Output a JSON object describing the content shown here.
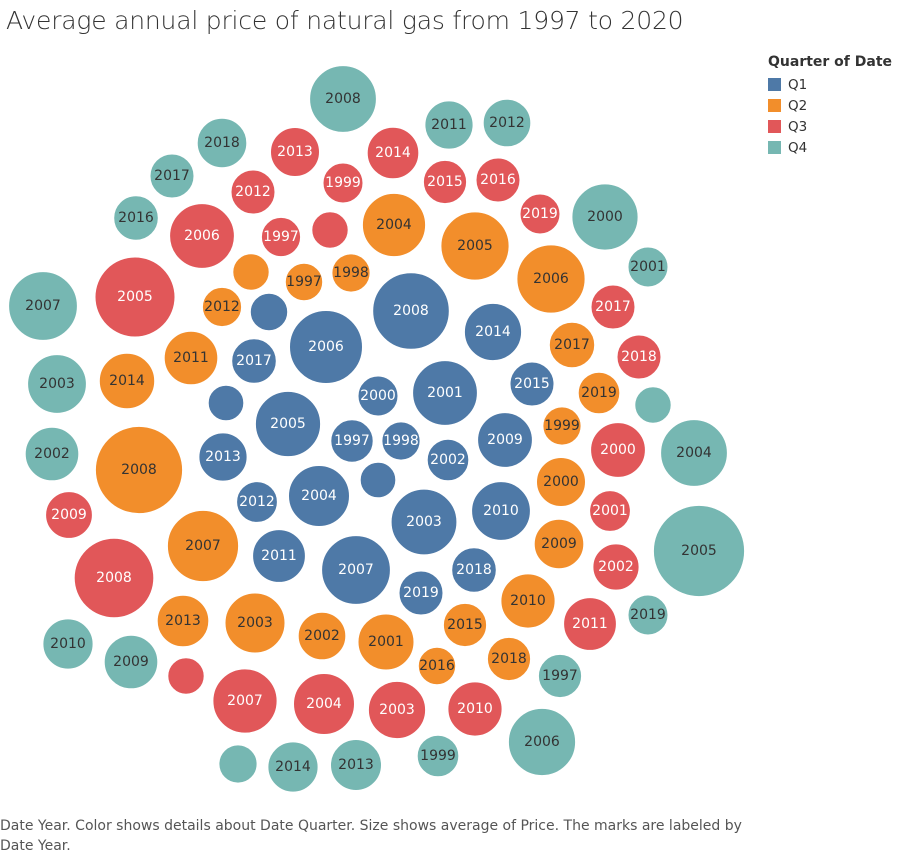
{
  "title": "Average annual price of natural gas from 1997 to 2020",
  "legend": {
    "title": "Quarter of Date",
    "items": [
      {
        "label": "Q1",
        "color": "#4e79a7"
      },
      {
        "label": "Q2",
        "color": "#f28e2b"
      },
      {
        "label": "Q3",
        "color": "#e15759"
      },
      {
        "label": "Q4",
        "color": "#76b7b2"
      }
    ]
  },
  "caption": "Date Year.  Color shows details about Date Quarter.  Size shows average of Price.  The marks are labeled by Date Year.",
  "chart_data": {
    "type": "bubble",
    "title": "Average annual price of natural gas from 1997 to 2020",
    "size_measure": "average of Price",
    "color_measure": "Date Quarter",
    "label_measure": "Date Year",
    "series": [
      {
        "name": "Q1",
        "color": "#4e79a7",
        "points": [
          {
            "year": "2008",
            "value": 8.8
          },
          {
            "year": "2006",
            "value": 8.0
          },
          {
            "year": "2014",
            "value": 4.9
          },
          {
            "year": "2017",
            "value": 3.0
          },
          {
            "year": "2015",
            "value": 2.9
          },
          {
            "year": "2000",
            "value": 2.4
          },
          {
            "year": "2001",
            "value": 6.3
          },
          {
            "year": "2005",
            "value": 6.4
          },
          {
            "year": "1997",
            "value": 2.7
          },
          {
            "year": "1998",
            "value": 2.2
          },
          {
            "year": "2002",
            "value": 2.6
          },
          {
            "year": "2009",
            "value": 4.5
          },
          {
            "year": "2013",
            "value": 3.5
          },
          {
            "year": "2004",
            "value": 5.6
          },
          {
            "year": "2003",
            "value": 6.5
          },
          {
            "year": "2010",
            "value": 5.2
          },
          {
            "year": "2012",
            "value": 2.5
          },
          {
            "year": "2011",
            "value": 4.2
          },
          {
            "year": "2007",
            "value": 7.1
          },
          {
            "year": "2018",
            "value": 3.0
          },
          {
            "year": "2019",
            "value": 2.9
          },
          {
            "year": "",
            "value": 2.1
          },
          {
            "year": "",
            "value": 1.9
          },
          {
            "year": "",
            "value": 1.9
          }
        ]
      },
      {
        "name": "Q2",
        "color": "#f28e2b",
        "points": [
          {
            "year": "2004",
            "value": 6.0
          },
          {
            "year": "2005",
            "value": 7.0
          },
          {
            "year": "2006",
            "value": 7.0
          },
          {
            "year": "1998",
            "value": 2.2
          },
          {
            "year": "1997",
            "value": 2.1
          },
          {
            "year": "2012",
            "value": 2.3
          },
          {
            "year": "2011",
            "value": 4.3
          },
          {
            "year": "2014",
            "value": 4.6
          },
          {
            "year": "2017",
            "value": 3.1
          },
          {
            "year": "2019",
            "value": 2.6
          },
          {
            "year": "1999",
            "value": 2.2
          },
          {
            "year": "2000",
            "value": 3.6
          },
          {
            "year": "2008",
            "value": 11.4
          },
          {
            "year": "2009",
            "value": 3.7
          },
          {
            "year": "2007",
            "value": 7.6
          },
          {
            "year": "2010",
            "value": 4.4
          },
          {
            "year": "2013",
            "value": 4.0
          },
          {
            "year": "2003",
            "value": 5.4
          },
          {
            "year": "2002",
            "value": 3.4
          },
          {
            "year": "2001",
            "value": 4.7
          },
          {
            "year": "2015",
            "value": 2.8
          },
          {
            "year": "2016",
            "value": 2.1
          },
          {
            "year": "2018",
            "value": 2.8
          },
          {
            "year": "",
            "value": 2.0
          }
        ]
      },
      {
        "name": "Q3",
        "color": "#e15759",
        "points": [
          {
            "year": "2013",
            "value": 3.6
          },
          {
            "year": "2014",
            "value": 4.0
          },
          {
            "year": "1999",
            "value": 2.4
          },
          {
            "year": "2015",
            "value": 2.8
          },
          {
            "year": "2016",
            "value": 2.9
          },
          {
            "year": "2012",
            "value": 2.9
          },
          {
            "year": "1997",
            "value": 2.3
          },
          {
            "year": "2019",
            "value": 2.4
          },
          {
            "year": "2006",
            "value": 6.3
          },
          {
            "year": "2005",
            "value": 9.6
          },
          {
            "year": "2017",
            "value": 2.9
          },
          {
            "year": "2018",
            "value": 2.9
          },
          {
            "year": "2000",
            "value": 4.5
          },
          {
            "year": "2001",
            "value": 2.5
          },
          {
            "year": "2009",
            "value": 3.3
          },
          {
            "year": "2002",
            "value": 3.2
          },
          {
            "year": "2008",
            "value": 9.5
          },
          {
            "year": "2011",
            "value": 4.2
          },
          {
            "year": "2007",
            "value": 6.2
          },
          {
            "year": "2004",
            "value": 5.6
          },
          {
            "year": "2003",
            "value": 4.9
          },
          {
            "year": "2010",
            "value": 4.4
          },
          {
            "year": "",
            "value": 2.0
          },
          {
            "year": "",
            "value": 2.0
          }
        ]
      },
      {
        "name": "Q4",
        "color": "#76b7b2",
        "points": [
          {
            "year": "2008",
            "value": 6.7
          },
          {
            "year": "2018",
            "value": 3.7
          },
          {
            "year": "2011",
            "value": 3.5
          },
          {
            "year": "2012",
            "value": 3.4
          },
          {
            "year": "2017",
            "value": 2.9
          },
          {
            "year": "2016",
            "value": 3.0
          },
          {
            "year": "2000",
            "value": 6.6
          },
          {
            "year": "2001",
            "value": 2.4
          },
          {
            "year": "2007",
            "value": 7.1
          },
          {
            "year": "2003",
            "value": 5.2
          },
          {
            "year": "2002",
            "value": 4.3
          },
          {
            "year": "2004",
            "value": 6.7
          },
          {
            "year": "2005",
            "value": 12.5
          },
          {
            "year": "2019",
            "value": 2.4
          },
          {
            "year": "2010",
            "value": 3.8
          },
          {
            "year": "2009",
            "value": 4.3
          },
          {
            "year": "1997",
            "value": 2.8
          },
          {
            "year": "2006",
            "value": 6.8
          },
          {
            "year": "1999",
            "value": 2.6
          },
          {
            "year": "2014",
            "value": 3.8
          },
          {
            "year": "2013",
            "value": 3.9
          },
          {
            "year": "",
            "value": 2.0
          },
          {
            "year": "",
            "value": 2.2
          },
          {
            "year": "",
            "value": 2.2
          }
        ]
      }
    ]
  }
}
